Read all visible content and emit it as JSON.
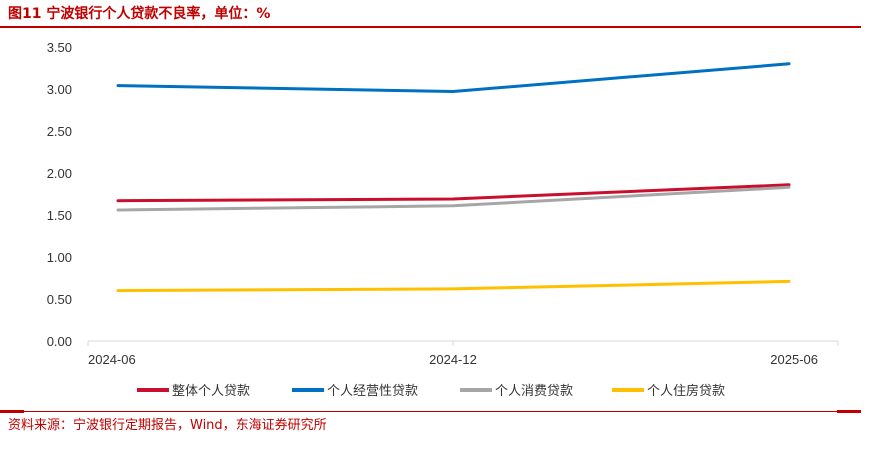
{
  "title": "图11  宁波银行个人贷款不良率，单位：%",
  "source": "资料来源：宁波银行定期报告，Wind，东海证券研究所",
  "chart_data": {
    "type": "line",
    "title": "宁波银行个人贷款不良率，单位：%",
    "xlabel": "",
    "ylabel": "",
    "categories": [
      "2024-06",
      "2024-12",
      "2025-06"
    ],
    "ylim": [
      0,
      3.5
    ],
    "yticks": [
      "0.00",
      "0.50",
      "1.00",
      "1.50",
      "2.00",
      "2.50",
      "3.00",
      "3.50"
    ],
    "ytick_values": [
      0,
      0.5,
      1,
      1.5,
      2,
      2.5,
      3,
      3.5
    ],
    "grid": false,
    "legend_position": "bottom",
    "series": [
      {
        "name": "整体个人贷款",
        "color": "#c8102e",
        "values": [
          1.67,
          1.69,
          1.86
        ]
      },
      {
        "name": "个人经营性贷款",
        "color": "#0070c0",
        "values": [
          3.04,
          2.97,
          3.3
        ]
      },
      {
        "name": "个人消费贷款",
        "color": "#a6a6a6",
        "values": [
          1.56,
          1.61,
          1.83
        ]
      },
      {
        "name": "个人住房贷款",
        "color": "#ffc000",
        "values": [
          0.6,
          0.62,
          0.71
        ]
      }
    ]
  }
}
